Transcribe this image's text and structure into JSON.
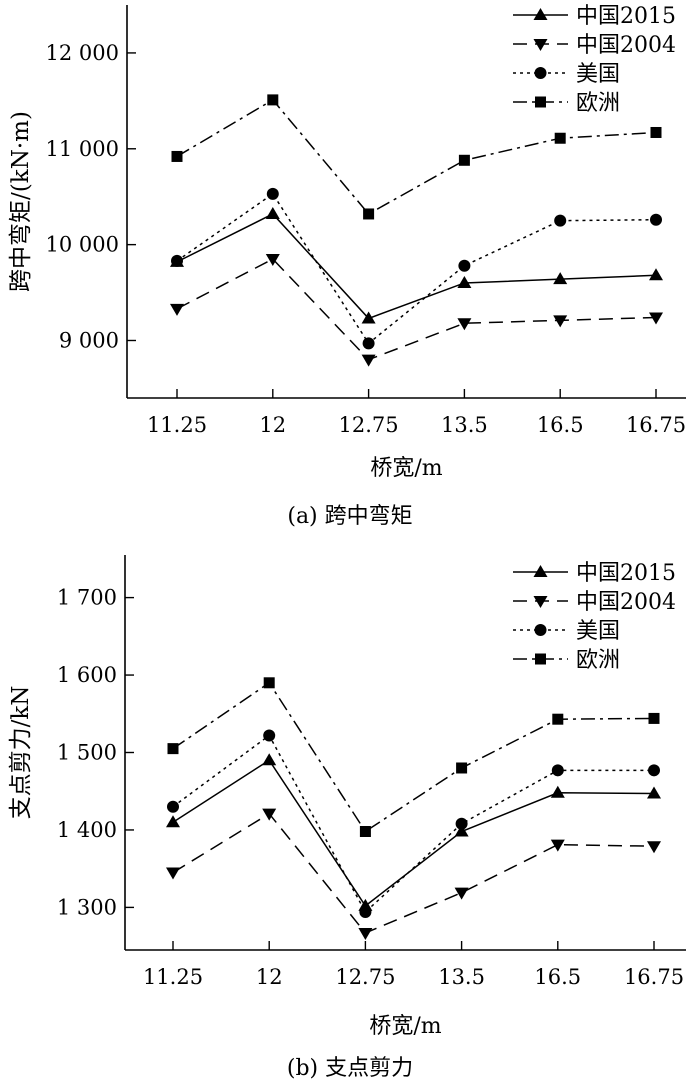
{
  "captions": {
    "a": "(a) 跨中弯矩",
    "b": "(b) 支点剪力"
  },
  "styles": {
    "中国2015": {
      "dash": "",
      "marker": "triangle-up"
    },
    "中国2004": {
      "dash": "14,8",
      "marker": "triangle-down"
    },
    "美国": {
      "dash": "3,4",
      "marker": "circle"
    },
    "欧洲": {
      "dash": "14,5,3,5",
      "marker": "square"
    }
  },
  "chart_data": [
    {
      "type": "line",
      "xlabel": "桥宽/m",
      "ylabel": "跨中弯矩/(kN·m)",
      "categories": [
        "11.25",
        "12",
        "12.75",
        "13.5",
        "16.5",
        "16.75"
      ],
      "ylim": [
        8400,
        12500
      ],
      "yticks": [
        9000,
        10000,
        11000,
        12000
      ],
      "ytick_labels": [
        "9 000",
        "10 000",
        "11 000",
        "12 000"
      ],
      "legend": "top-right",
      "series": [
        {
          "name": "中国2015",
          "values": [
            9820,
            10320,
            9230,
            9600,
            9640,
            9680
          ]
        },
        {
          "name": "中国2004",
          "values": [
            9330,
            9850,
            8800,
            9180,
            9210,
            9240
          ]
        },
        {
          "name": "美国",
          "values": [
            9830,
            10530,
            8970,
            9780,
            10250,
            10260
          ]
        },
        {
          "name": "欧洲",
          "values": [
            10920,
            11510,
            10320,
            10880,
            11110,
            11170
          ]
        }
      ]
    },
    {
      "type": "line",
      "xlabel": "桥宽/m",
      "ylabel": "支点剪力/kN",
      "categories": [
        "11.25",
        "12",
        "12.75",
        "13.5",
        "16.5",
        "16.75"
      ],
      "ylim": [
        1245,
        1755
      ],
      "yticks": [
        1300,
        1400,
        1500,
        1600,
        1700
      ],
      "ytick_labels": [
        "1 300",
        "1 400",
        "1 500",
        "1 600",
        "1 700"
      ],
      "legend": "top-right",
      "series": [
        {
          "name": "中国2015",
          "values": [
            1410,
            1490,
            1302,
            1398,
            1448,
            1447
          ]
        },
        {
          "name": "中国2004",
          "values": [
            1345,
            1421,
            1267,
            1319,
            1381,
            1379
          ]
        },
        {
          "name": "美国",
          "values": [
            1430,
            1522,
            1294,
            1408,
            1477,
            1477
          ]
        },
        {
          "name": "欧洲",
          "values": [
            1505,
            1590,
            1398,
            1480,
            1543,
            1544
          ]
        }
      ]
    }
  ]
}
